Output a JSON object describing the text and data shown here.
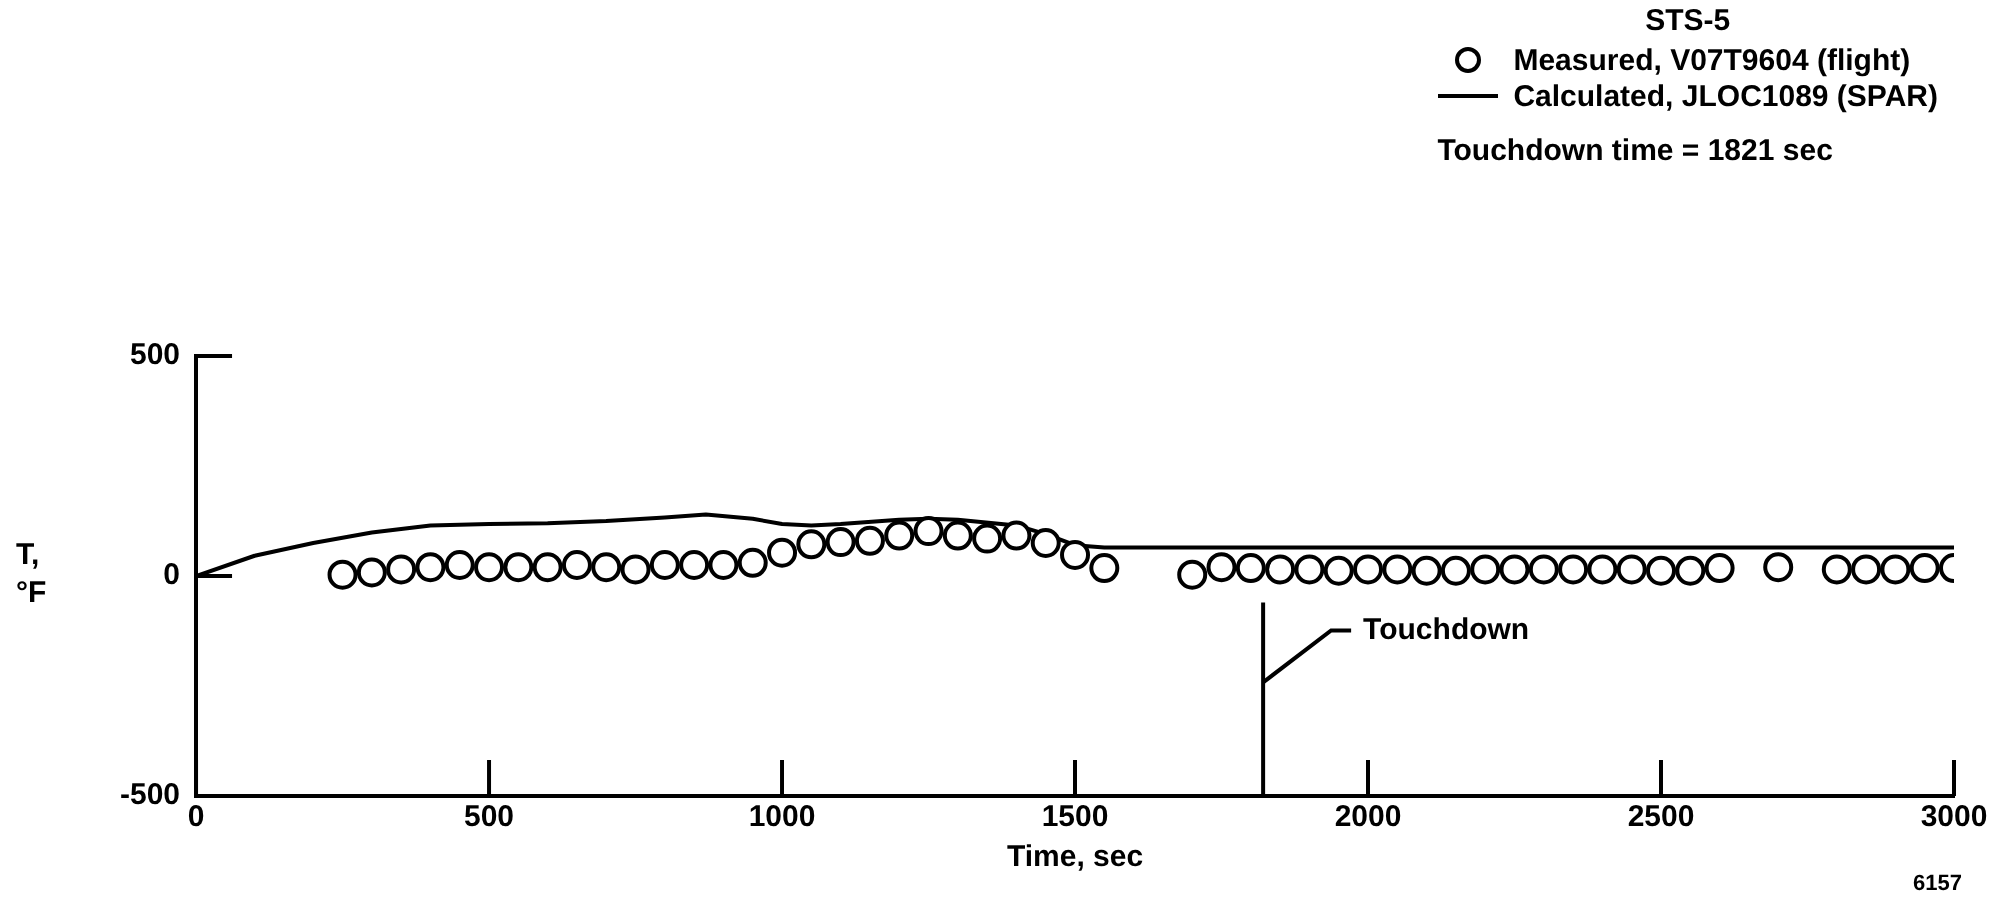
{
  "chart_data": {
    "type": "scatter",
    "title": "STS-5",
    "xlabel": "Time, sec",
    "ylabel": "T,\n°F",
    "xlim": [
      0,
      3000
    ],
    "xticks": [
      0,
      500,
      1000,
      1500,
      2000,
      2500,
      3000
    ],
    "ylim": [
      -500,
      500
    ],
    "yticks": [
      -500,
      0,
      500
    ],
    "grid": false,
    "legend": "top right",
    "series": [
      {
        "name": "Measured, V07T9604 (flight)",
        "type": "scatter",
        "marker": "circle",
        "color": "#000000",
        "x": [
          250,
          300,
          350,
          400,
          450,
          500,
          550,
          600,
          650,
          700,
          750,
          800,
          850,
          900,
          950,
          1000,
          1050,
          1100,
          1150,
          1200,
          1250,
          1300,
          1350,
          1400,
          1450,
          1500,
          1550,
          1700,
          1750,
          1800,
          1850,
          1900,
          1950,
          2000,
          2050,
          2100,
          2150,
          2200,
          2250,
          2300,
          2350,
          2400,
          2450,
          2500,
          2550,
          2600,
          2700,
          2800,
          2850,
          2900,
          2950,
          3000
        ],
        "values": [
          3,
          8,
          15,
          20,
          25,
          20,
          20,
          20,
          25,
          20,
          15,
          25,
          25,
          25,
          30,
          53,
          72,
          77,
          80,
          92,
          102,
          92,
          85,
          92,
          75,
          48,
          18,
          3,
          20,
          18,
          15,
          15,
          12,
          15,
          15,
          12,
          12,
          15,
          15,
          15,
          15,
          15,
          15,
          12,
          12,
          18,
          20,
          15,
          15,
          15,
          18,
          18
        ]
      },
      {
        "name": "Calculated, JLOC1089 (SPAR)",
        "type": "line",
        "marker": "none",
        "line_style": "solid",
        "color": "#000000",
        "x": [
          0,
          100,
          200,
          300,
          400,
          500,
          600,
          700,
          800,
          870,
          950,
          1000,
          1050,
          1100,
          1200,
          1250,
          1300,
          1400,
          1450,
          1500,
          1550,
          1600,
          2000,
          2500,
          3000
        ],
        "values": [
          0,
          46,
          75,
          99,
          115,
          118,
          120,
          125,
          133,
          140,
          130,
          118,
          115,
          118,
          128,
          130,
          128,
          115,
          95,
          70,
          65,
          65,
          65,
          65,
          65
        ]
      }
    ],
    "ref_lines": [
      {
        "axis": "x",
        "value": 1821,
        "label": "Touchdown"
      }
    ],
    "annotations": [
      "Touchdown time = 1821 sec",
      "6157"
    ]
  }
}
